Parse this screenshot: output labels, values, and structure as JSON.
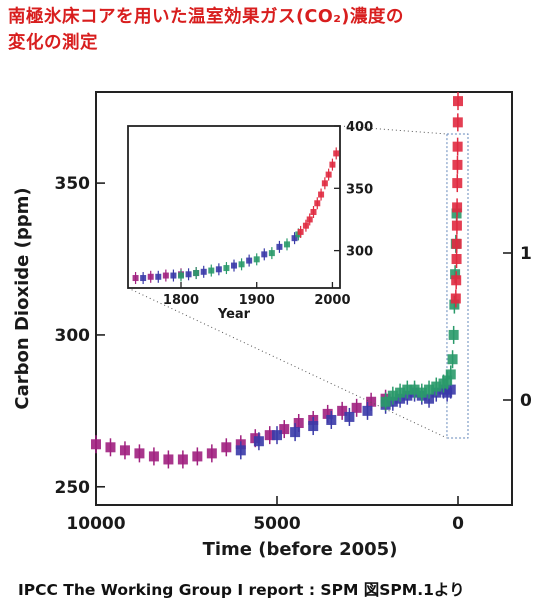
{
  "title_line1": "南極氷床コアを用いた温室効果ガス(CO₂)濃度の",
  "title_line2": "変化の測定",
  "footer": "IPCC  The Working Group I report : SPM  図SPM.1より",
  "colors": {
    "title": "#d81e1e",
    "series_old": "#a0207f",
    "series_mid1": "#3a3aa8",
    "series_mid2": "#2a9a6a",
    "series_modern": "#e02a40"
  },
  "chart_data": [
    {
      "type": "scatter",
      "xlabel": "Time (before 2005)",
      "ylabel": "Carbon Dioxide (ppm)",
      "xlim": [
        10000,
        0
      ],
      "ylim": [
        244,
        380
      ],
      "x_ticks": [
        "10000",
        "5000",
        "0"
      ],
      "y_ticks": [
        "250",
        "300",
        "350"
      ],
      "right_axis_ticks": [
        "0",
        "1"
      ],
      "series": [
        {
          "color": "#a0207f",
          "x": [
            10000,
            9600,
            9200,
            8800,
            8400,
            8000,
            7600,
            7200,
            6800,
            6400,
            6000,
            5600,
            5200,
            4800,
            4400,
            4000,
            3600,
            3200,
            2800,
            2400,
            2000
          ],
          "y": [
            264,
            263,
            262,
            261,
            260,
            259,
            259,
            260,
            261,
            263,
            264,
            266,
            267,
            269,
            271,
            272,
            274,
            275,
            276,
            278,
            279
          ]
        },
        {
          "color": "#3a3aa8",
          "x": [
            6000,
            5500,
            5000,
            4500,
            4000,
            3500,
            3000,
            2500,
            2000,
            1800,
            1600,
            1400,
            1200,
            1000,
            800,
            600,
            400,
            300,
            200
          ],
          "y": [
            262,
            265,
            267,
            268,
            270,
            272,
            273,
            275,
            277,
            278,
            279,
            280,
            281,
            280,
            279,
            281,
            282,
            281,
            282
          ]
        },
        {
          "color": "#2a9a6a",
          "x": [
            2000,
            1800,
            1600,
            1400,
            1200,
            1000,
            800,
            600,
            400,
            300,
            200,
            150,
            120,
            100,
            80,
            60,
            40
          ],
          "y": [
            278,
            280,
            281,
            282,
            282,
            281,
            282,
            283,
            284,
            285,
            287,
            292,
            300,
            310,
            320,
            330,
            340
          ]
        },
        {
          "color": "#e02a40",
          "x": [
            60,
            50,
            40,
            35,
            30,
            25,
            20,
            15,
            10,
            5,
            0
          ],
          "y": [
            312,
            318,
            325,
            330,
            336,
            342,
            350,
            356,
            362,
            370,
            377
          ]
        }
      ]
    },
    {
      "type": "scatter",
      "xlabel": "Year",
      "ylabel": "",
      "xlim": [
        1730,
        2010
      ],
      "ylim": [
        270,
        400
      ],
      "x_ticks": [
        "1800",
        "1900",
        "2000"
      ],
      "y_ticks": [
        "300",
        "350",
        "400"
      ],
      "series": [
        {
          "color": "#a0207f",
          "x": [
            1740,
            1760,
            1780,
            1800,
            1820
          ],
          "y": [
            278,
            279,
            280,
            281,
            282
          ]
        },
        {
          "color": "#3a3aa8",
          "x": [
            1750,
            1770,
            1790,
            1810,
            1830,
            1850,
            1870,
            1890,
            1910,
            1930,
            1950
          ],
          "y": [
            278,
            279,
            280,
            281,
            283,
            285,
            288,
            292,
            297,
            303,
            310
          ]
        },
        {
          "color": "#2a9a6a",
          "x": [
            1800,
            1820,
            1840,
            1860,
            1880,
            1900,
            1920,
            1940,
            1955
          ],
          "y": [
            280,
            282,
            284,
            286,
            289,
            293,
            298,
            305,
            313
          ]
        },
        {
          "color": "#e02a40",
          "x": [
            1958,
            1965,
            1970,
            1975,
            1980,
            1985,
            1990,
            1995,
            2000,
            2005
          ],
          "y": [
            315,
            320,
            325,
            331,
            338,
            345,
            354,
            361,
            369,
            378
          ]
        }
      ]
    }
  ]
}
